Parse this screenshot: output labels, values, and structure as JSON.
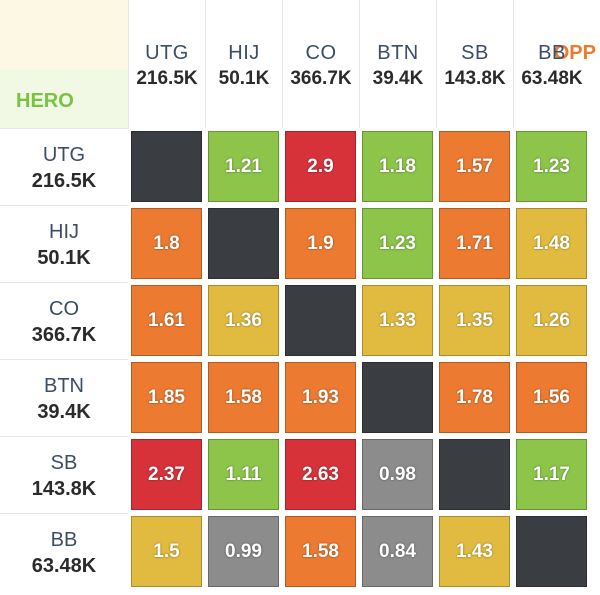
{
  "corner": {
    "opp_label": "OPP",
    "hero_label": "HERO"
  },
  "colors": {
    "red": "#d7323a",
    "orange": "#ed7a31",
    "yellow": "#e1bb40",
    "green": "#8cc54a",
    "gray": "#8c8c8c",
    "dark": "#3a3d42",
    "opp": "#ee7b2c",
    "hero": "#78c441"
  },
  "chart_data": {
    "type": "heatmap",
    "opp_positions": [
      {
        "pos": "UTG",
        "count": "216.5K"
      },
      {
        "pos": "HIJ",
        "count": "50.1K"
      },
      {
        "pos": "CO",
        "count": "366.7K"
      },
      {
        "pos": "BTN",
        "count": "39.4K"
      },
      {
        "pos": "SB",
        "count": "143.8K"
      },
      {
        "pos": "BB",
        "count": "63.48K"
      }
    ],
    "hero_positions": [
      {
        "pos": "UTG",
        "count": "216.5K"
      },
      {
        "pos": "HIJ",
        "count": "50.1K"
      },
      {
        "pos": "CO",
        "count": "366.7K"
      },
      {
        "pos": "BTN",
        "count": "39.4K"
      },
      {
        "pos": "SB",
        "count": "143.8K"
      },
      {
        "pos": "BB",
        "count": "63.48K"
      }
    ],
    "values": [
      [
        null,
        "1.21",
        "2.9",
        "1.18",
        "1.57",
        "1.23"
      ],
      [
        "1.8",
        null,
        "1.9",
        "1.23",
        "1.71",
        "1.48"
      ],
      [
        "1.61",
        "1.36",
        null,
        "1.33",
        "1.35",
        "1.26"
      ],
      [
        "1.85",
        "1.58",
        "1.93",
        null,
        "1.78",
        "1.56"
      ],
      [
        "2.37",
        "1.11",
        "2.63",
        "0.98",
        null,
        "1.17"
      ],
      [
        "1.5",
        "0.99",
        "1.58",
        "0.84",
        "1.43",
        null
      ]
    ],
    "cell_colors": [
      [
        "dark",
        "green",
        "red",
        "green",
        "orange",
        "green"
      ],
      [
        "orange",
        "dark",
        "orange",
        "green",
        "orange",
        "yellow"
      ],
      [
        "orange",
        "yellow",
        "dark",
        "yellow",
        "yellow",
        "yellow"
      ],
      [
        "orange",
        "orange",
        "orange",
        "dark",
        "orange",
        "orange"
      ],
      [
        "red",
        "green",
        "red",
        "gray",
        "dark",
        "green"
      ],
      [
        "yellow",
        "gray",
        "orange",
        "gray",
        "yellow",
        "dark"
      ]
    ]
  }
}
